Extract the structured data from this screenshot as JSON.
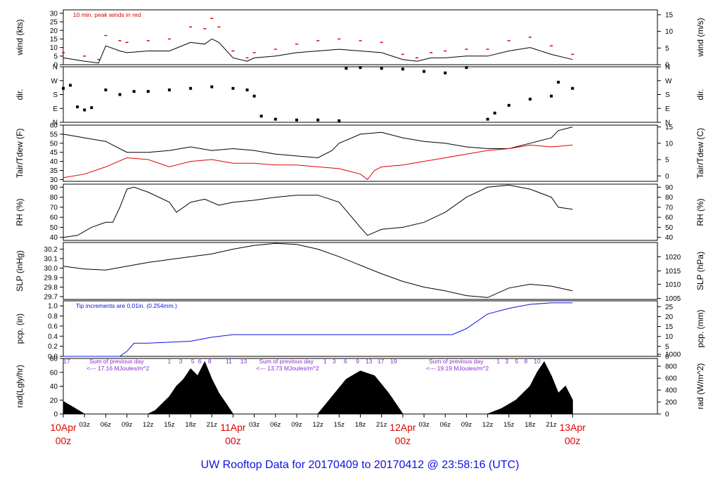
{
  "colors": {
    "axis": "#000000",
    "red": "#e00000",
    "blue": "#1010e0",
    "purple": "#8a2bd0"
  },
  "chart_data": {
    "type": "line",
    "title": "UW Rooftop Data for 20170409  to  20170412 @ 23:58:16  (UTC)",
    "x_hours": [
      0,
      84
    ],
    "x_ticks": [
      {
        "h": 0,
        "label": "10Apr",
        "sub": "00z",
        "major": true
      },
      {
        "h": 3,
        "label": "03z"
      },
      {
        "h": 6,
        "label": "06z"
      },
      {
        "h": 9,
        "label": "09z"
      },
      {
        "h": 12,
        "label": "12z"
      },
      {
        "h": 15,
        "label": "15z"
      },
      {
        "h": 18,
        "label": "18z"
      },
      {
        "h": 21,
        "label": "21z"
      },
      {
        "h": 24,
        "label": "11Apr",
        "sub": "00z",
        "major": true
      },
      {
        "h": 27,
        "label": "03z"
      },
      {
        "h": 30,
        "label": "06z"
      },
      {
        "h": 33,
        "label": "09z"
      },
      {
        "h": 36,
        "label": "12z"
      },
      {
        "h": 39,
        "label": "15z"
      },
      {
        "h": 42,
        "label": "18z"
      },
      {
        "h": 45,
        "label": "21z"
      },
      {
        "h": 48,
        "label": "12Apr",
        "sub": "00z",
        "major": true
      },
      {
        "h": 51,
        "label": "03z"
      },
      {
        "h": 54,
        "label": "06z"
      },
      {
        "h": 57,
        "label": "09z"
      },
      {
        "h": 60,
        "label": "12z"
      },
      {
        "h": 63,
        "label": "15z"
      },
      {
        "h": 66,
        "label": "18z"
      },
      {
        "h": 69,
        "label": "21z"
      },
      {
        "h": 72,
        "label": "13Apr",
        "sub": "00z",
        "major": true
      }
    ],
    "panels": [
      {
        "id": "wind",
        "ylabel_left": "wind (kts)",
        "ylabel_right": "wind (m/s)",
        "ylim": [
          0,
          32
        ],
        "left_ticks": [
          "0",
          "5",
          "10",
          "15",
          "20",
          "25",
          "30"
        ],
        "left_tick_values": [
          0,
          5,
          10,
          15,
          20,
          25,
          30
        ],
        "right_ticks": [
          "0",
          "5",
          "10",
          "15"
        ],
        "right_tick_values": [
          0,
          9.72,
          19.44,
          29.16
        ],
        "annotation": "10 min. peak winds in red",
        "series": [
          {
            "name": "wind speed",
            "color": "#000000",
            "x": [
              0,
              3,
              5,
              6,
              8,
              9,
              12,
              15,
              18,
              20,
              21,
              22,
              24,
              26,
              27,
              30,
              33,
              36,
              39,
              42,
              45,
              48,
              50,
              52,
              54,
              57,
              60,
              63,
              66,
              69,
              72
            ],
            "y": [
              4,
              2,
              1,
              11,
              8,
              7,
              8,
              8,
              13,
              12,
              15,
              13,
              4,
              2,
              4,
              5,
              7,
              8,
              9,
              8,
              7,
              3,
              2,
              4,
              4,
              5,
              5,
              8,
              10,
              6,
              3
            ]
          },
          {
            "name": "10 min peak",
            "color": "#e00000",
            "x": [
              0,
              3,
              5,
              6,
              8,
              9,
              12,
              15,
              18,
              20,
              21,
              22,
              24,
              26,
              27,
              30,
              33,
              36,
              39,
              42,
              45,
              48,
              50,
              52,
              54,
              57,
              60,
              63,
              66,
              69,
              72
            ],
            "y": [
              7,
              5,
              3,
              17,
              14,
              13,
              14,
              15,
              22,
              21,
              27,
              22,
              8,
              4,
              7,
              9,
              12,
              14,
              15,
              14,
              13,
              6,
              4,
              7,
              8,
              9,
              9,
              14,
              16,
              11,
              6
            ]
          }
        ]
      },
      {
        "id": "dir",
        "ylabel_left": "dir.",
        "ylabel_right": "dir.",
        "ylim": [
          0,
          360
        ],
        "left_ticks": [
          "N",
          "E",
          "S",
          "W",
          "N"
        ],
        "left_tick_values": [
          0,
          90,
          180,
          270,
          360
        ],
        "right_ticks": [
          "N",
          "E",
          "S",
          "W",
          "N"
        ],
        "right_tick_values": [
          0,
          90,
          180,
          270,
          360
        ],
        "series": [
          {
            "name": "direction",
            "color": "#000000",
            "x": [
              0,
              1,
              2,
              3,
              4,
              6,
              8,
              10,
              12,
              15,
              18,
              21,
              24,
              26,
              27,
              28,
              30,
              33,
              36,
              39,
              40,
              42,
              45,
              48,
              51,
              54,
              57,
              60,
              61,
              63,
              66,
              69,
              70,
              72
            ],
            "y": [
              220,
              240,
              100,
              80,
              95,
              210,
              180,
              200,
              200,
              210,
              220,
              230,
              220,
              210,
              170,
              40,
              20,
              15,
              15,
              10,
              350,
              355,
              350,
              345,
              330,
              320,
              355,
              20,
              60,
              110,
              150,
              170,
              260,
              220
            ]
          }
        ]
      },
      {
        "id": "temp",
        "ylabel_left": "Tair/Tdew (F)",
        "ylabel_right": "Tair/Tdew (C)",
        "ylim": [
          29,
          60
        ],
        "left_ticks": [
          "30",
          "35",
          "40",
          "45",
          "50",
          "55",
          "60"
        ],
        "left_tick_values": [
          30,
          35,
          40,
          45,
          50,
          55,
          60
        ],
        "right_ticks": [
          "0",
          "5",
          "10",
          "15"
        ],
        "right_tick_values": [
          32,
          41,
          50,
          59
        ],
        "series": [
          {
            "name": "Tair",
            "color": "#000000",
            "x": [
              0,
              3,
              6,
              9,
              12,
              15,
              18,
              21,
              24,
              27,
              30,
              33,
              36,
              38,
              39,
              42,
              45,
              48,
              51,
              54,
              57,
              60,
              63,
              66,
              69,
              70,
              72
            ],
            "y": [
              55,
              53,
              51,
              45,
              45,
              46,
              48,
              46,
              47,
              46,
              44,
              43,
              42,
              46,
              50,
              55,
              56,
              53,
              51,
              50,
              48,
              47,
              47,
              50,
              53,
              57,
              59
            ]
          },
          {
            "name": "Tdew",
            "color": "#e00000",
            "x": [
              0,
              3,
              6,
              9,
              12,
              15,
              18,
              21,
              24,
              27,
              30,
              33,
              36,
              39,
              42,
              43,
              44,
              45,
              48,
              51,
              54,
              57,
              60,
              63,
              66,
              69,
              72
            ],
            "y": [
              31,
              33,
              37,
              42,
              41,
              37,
              40,
              41,
              39,
              39,
              38,
              38,
              37,
              36,
              33,
              30,
              35,
              37,
              38,
              40,
              42,
              44,
              46,
              47,
              49,
              48,
              49
            ]
          }
        ]
      },
      {
        "id": "rh",
        "ylabel_left": "RH (%)",
        "ylabel_right": "RH (%)",
        "ylim": [
          37,
          93
        ],
        "left_ticks": [
          "40",
          "50",
          "60",
          "70",
          "80",
          "90"
        ],
        "left_tick_values": [
          40,
          50,
          60,
          70,
          80,
          90
        ],
        "right_ticks": [
          "40",
          "50",
          "60",
          "70",
          "80",
          "90"
        ],
        "right_tick_values": [
          40,
          50,
          60,
          70,
          80,
          90
        ],
        "series": [
          {
            "name": "RH",
            "color": "#000000",
            "x": [
              0,
              2,
              4,
              6,
              7,
              8,
              9,
              10,
              12,
              15,
              16,
              18,
              20,
              22,
              24,
              27,
              30,
              33,
              36,
              39,
              42,
              43,
              45,
              48,
              51,
              54,
              57,
              60,
              63,
              66,
              69,
              70,
              72
            ],
            "y": [
              40,
              42,
              50,
              55,
              55,
              70,
              88,
              90,
              85,
              75,
              65,
              75,
              78,
              72,
              75,
              77,
              80,
              82,
              82,
              75,
              50,
              42,
              48,
              50,
              55,
              65,
              80,
              90,
              92,
              88,
              80,
              70,
              68
            ]
          }
        ]
      },
      {
        "id": "slp",
        "ylabel_left": "SLP (inHg)",
        "ylabel_right": "SLP (hPa)",
        "ylim": [
          29.67,
          30.27
        ],
        "left_ticks": [
          "29.7",
          "29.8",
          "29.9",
          "30.0",
          "30.1",
          "30.2"
        ],
        "left_tick_values": [
          29.7,
          29.8,
          29.9,
          30.0,
          30.1,
          30.2
        ],
        "right_ticks": [
          "1005",
          "1010",
          "1015",
          "1020"
        ],
        "right_tick_values": [
          29.68,
          29.83,
          29.97,
          30.12
        ],
        "series": [
          {
            "name": "SLP",
            "color": "#000000",
            "x": [
              0,
              3,
              6,
              9,
              12,
              15,
              18,
              21,
              24,
              27,
              30,
              33,
              36,
              39,
              42,
              45,
              48,
              51,
              54,
              57,
              60,
              63,
              66,
              69,
              72
            ],
            "y": [
              30.02,
              29.99,
              29.98,
              30.02,
              30.06,
              30.09,
              30.12,
              30.15,
              30.2,
              30.24,
              30.26,
              30.25,
              30.2,
              30.12,
              30.03,
              29.94,
              29.86,
              29.8,
              29.76,
              29.71,
              29.69,
              29.79,
              29.83,
              29.81,
              29.76
            ]
          }
        ]
      },
      {
        "id": "pcp",
        "ylabel_left": "pcp. (in)",
        "ylabel_right": "pcp. (mm)",
        "ylim": [
          0,
          1.1
        ],
        "left_ticks": [
          "0.0",
          "0.2",
          "0.4",
          "0.6",
          "0.8",
          "1.0"
        ],
        "left_tick_values": [
          0,
          0.2,
          0.4,
          0.6,
          0.8,
          1.0
        ],
        "right_ticks": [
          "0",
          "5",
          "10",
          "15",
          "20",
          "25"
        ],
        "right_tick_values": [
          0,
          0.197,
          0.394,
          0.591,
          0.787,
          0.984
        ],
        "annotation": "Tip increments are 0.01in. (0.254mm.)",
        "series": [
          {
            "name": "cumulative precip",
            "color": "#1010e0",
            "x": [
              0,
              8,
              9,
              10,
              12,
              18,
              21,
              24,
              27,
              36,
              48,
              55,
              57,
              60,
              63,
              66,
              69,
              72
            ],
            "y": [
              0,
              0,
              0.1,
              0.26,
              0.26,
              0.3,
              0.38,
              0.43,
              0.43,
              0.43,
              0.43,
              0.43,
              0.55,
              0.84,
              0.95,
              1.03,
              1.06,
              1.06
            ]
          }
        ]
      },
      {
        "id": "rad",
        "ylabel_left": "rad(Lgly/hr)",
        "ylabel_right": "rad (W/m^2)",
        "ylim": [
          0,
          80
        ],
        "left_ticks": [
          "0",
          "20",
          "40",
          "60",
          "80"
        ],
        "left_tick_values": [
          0,
          20,
          40,
          60,
          80
        ],
        "right_ticks": [
          "0",
          "200",
          "400",
          "600",
          "800",
          "1000"
        ],
        "right_tick_values": [
          0,
          17.2,
          34.4,
          51.6,
          68.8,
          86
        ],
        "daily_sums": [
          "<--- 17.16 MJoules/m^2",
          "<--- 13.73 MJoules/m^2",
          "<--- 19.19 MJoules/m^2"
        ],
        "sum_label": "Sum of previous day",
        "hour_marks_day1": [
          "17",
          "1",
          "3",
          "5",
          "6",
          "8",
          "11",
          "13"
        ],
        "hour_marks_day2": [
          "1",
          "3",
          "6",
          "9",
          "13",
          "17",
          "19"
        ],
        "hour_marks_day3": [
          "1",
          "3",
          "5",
          "8",
          "10"
        ],
        "series": [
          {
            "name": "solar radiation",
            "color": "#000000",
            "x": [
              0,
              1,
              3,
              12,
              13,
              15,
              16,
              17,
              18,
              19,
              20,
              21,
              22,
              23,
              24,
              36,
              38,
              40,
              42,
              44,
              46,
              48,
              60,
              62,
              64,
              66,
              67,
              68,
              69,
              70,
              71,
              72
            ],
            "y": [
              18,
              12,
              0,
              0,
              5,
              25,
              40,
              50,
              65,
              55,
              75,
              50,
              30,
              15,
              0,
              0,
              25,
              50,
              62,
              55,
              30,
              0,
              0,
              8,
              20,
              40,
              60,
              75,
              55,
              30,
              40,
              20
            ]
          }
        ]
      }
    ]
  }
}
